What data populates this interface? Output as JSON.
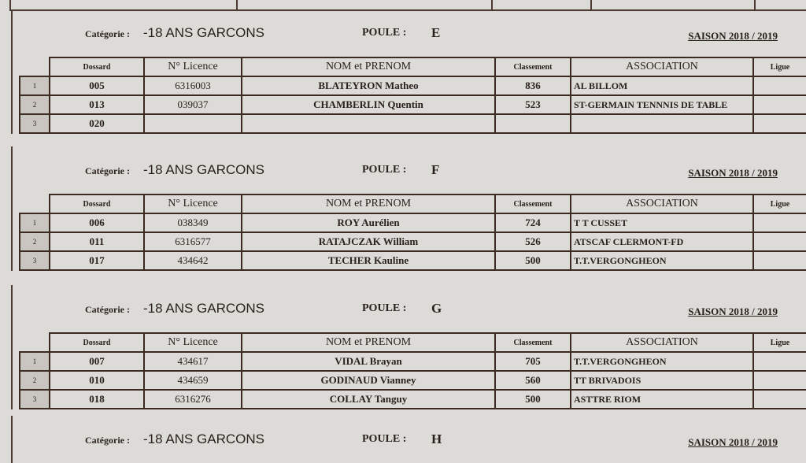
{
  "headers": {
    "categorie_label": "Catégorie :",
    "poule_label": "POULE :",
    "columns": [
      "Dossard",
      "N° Licence",
      "NOM  et PRENOM",
      "Classement",
      "ASSOCIATION",
      "Ligue"
    ]
  },
  "poules": [
    {
      "categorie": "-18 ANS GARCONS",
      "poule": "E",
      "saison": "SAISON 2018 / 2019",
      "rows": [
        {
          "n": "1",
          "dossard": "005",
          "licence": "6316003",
          "nom": "BLATEYRON Matheo",
          "classement": "836",
          "association": "AL BILLOM",
          "ligue": ""
        },
        {
          "n": "2",
          "dossard": "013",
          "licence": "039037",
          "nom": "CHAMBERLIN Quentin",
          "classement": "523",
          "association": "ST-GERMAIN TENNNIS DE TABLE",
          "ligue": ""
        },
        {
          "n": "3",
          "dossard": "020",
          "licence": "",
          "nom": "",
          "classement": "",
          "association": "",
          "ligue": ""
        }
      ]
    },
    {
      "categorie": "-18 ANS GARCONS",
      "poule": "F",
      "saison": "SAISON 2018 / 2019",
      "rows": [
        {
          "n": "1",
          "dossard": "006",
          "licence": "038349",
          "nom": "ROY Aurélien",
          "classement": "724",
          "association": "T T CUSSET",
          "ligue": ""
        },
        {
          "n": "2",
          "dossard": "011",
          "licence": "6316577",
          "nom": "RATAJCZAK William",
          "classement": "526",
          "association": "ATSCAF CLERMONT-FD",
          "ligue": ""
        },
        {
          "n": "3",
          "dossard": "017",
          "licence": "434642",
          "nom": "TECHER Kauline",
          "classement": "500",
          "association": "T.T.VERGONGHEON",
          "ligue": ""
        }
      ]
    },
    {
      "categorie": "-18 ANS GARCONS",
      "poule": "G",
      "saison": "SAISON 2018 / 2019",
      "rows": [
        {
          "n": "1",
          "dossard": "007",
          "licence": "434617",
          "nom": "VIDAL Brayan",
          "classement": "705",
          "association": "T.T.VERGONGHEON",
          "ligue": ""
        },
        {
          "n": "2",
          "dossard": "010",
          "licence": "434659",
          "nom": "GODINAUD Vianney",
          "classement": "560",
          "association": "TT BRIVADOIS",
          "ligue": ""
        },
        {
          "n": "3",
          "dossard": "018",
          "licence": "6316276",
          "nom": "COLLAY Tanguy",
          "classement": "500",
          "association": "ASTTRE RIOM",
          "ligue": ""
        }
      ]
    },
    {
      "categorie": "-18 ANS GARCONS",
      "poule": "H",
      "saison": "SAISON 2018 / 2019",
      "rows": []
    }
  ]
}
